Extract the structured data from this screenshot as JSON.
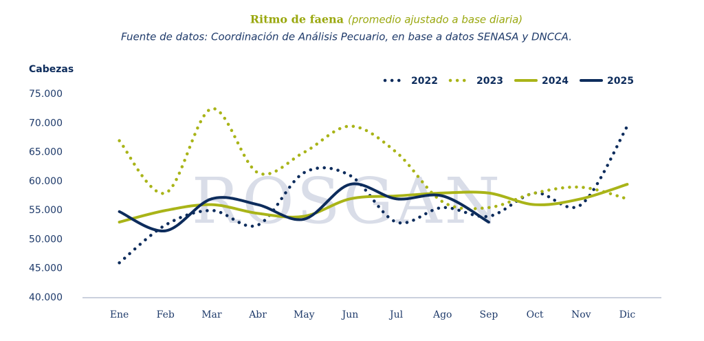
{
  "chart_data": {
    "type": "line",
    "title": "Ritmo de faena",
    "title_note": "(promedio ajustado a base diaria)",
    "subtitle": "Fuente de datos: Coordinación de Análisis Pecuario, en base a datos SENASA y DNCCA.",
    "y_label": "Cabezas",
    "watermark": "ROSGAN",
    "categories": [
      "Ene",
      "Feb",
      "Mar",
      "Abr",
      "May",
      "Jun",
      "Jul",
      "Ago",
      "Sep",
      "Oct",
      "Nov",
      "Dic"
    ],
    "series": [
      {
        "name": "2022",
        "color": "#0d2c5c",
        "style": "dotted",
        "values": [
          46000,
          52500,
          55000,
          52500,
          61500,
          61000,
          53000,
          55500,
          54000,
          58000,
          56000,
          69500
        ]
      },
      {
        "name": "2023",
        "color": "#a9b418",
        "style": "dotted",
        "values": [
          67000,
          58000,
          72500,
          61500,
          65000,
          69500,
          65000,
          56500,
          55500,
          58000,
          59000,
          57000
        ]
      },
      {
        "name": "2024",
        "color": "#a9b418",
        "style": "solid",
        "values": [
          53000,
          55000,
          56000,
          54500,
          54000,
          57000,
          57500,
          58000,
          58000,
          56000,
          57000,
          59500
        ]
      },
      {
        "name": "2025",
        "color": "#0d2c5c",
        "style": "solid",
        "values": [
          54800,
          51500,
          57000,
          56000,
          53500,
          59500,
          57000,
          57500,
          53000,
          null,
          null,
          null
        ]
      }
    ],
    "ylim": [
      40000,
      75000
    ],
    "yticks": [
      {
        "value": 40000,
        "label": "40.000"
      },
      {
        "value": 45000,
        "label": "45.000"
      },
      {
        "value": 50000,
        "label": "50.000"
      },
      {
        "value": 55000,
        "label": "55.000"
      },
      {
        "value": 60000,
        "label": "60.000"
      },
      {
        "value": 65000,
        "label": "65.000"
      },
      {
        "value": 70000,
        "label": "70.000"
      },
      {
        "value": 75000,
        "label": "75.000"
      }
    ],
    "legend": "top-right",
    "grid": false
  }
}
